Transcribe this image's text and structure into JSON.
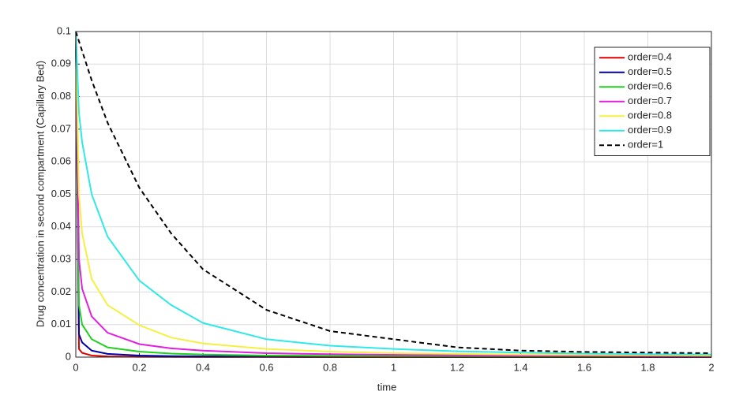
{
  "chart_data": {
    "type": "line",
    "xlabel": "time",
    "ylabel": "Drug concentration in second compartment (Capillary Bed)",
    "x": [
      0,
      0.01,
      0.02,
      0.05,
      0.1,
      0.2,
      0.3,
      0.4,
      0.6,
      0.8,
      1,
      1.2,
      1.4,
      1.6,
      1.8,
      2
    ],
    "series": [
      {
        "name": "order=0.4",
        "color": "#e00000",
        "linestyle": "solid",
        "values": [
          0.1,
          0.0025,
          0.0013,
          0.0005,
          0.0002,
          0.0001,
          5e-05,
          3e-05,
          2e-05,
          1e-05,
          1e-05,
          1e-05,
          0,
          0,
          0,
          0
        ]
      },
      {
        "name": "order=0.5",
        "color": "#0000a8",
        "linestyle": "solid",
        "values": [
          0.1,
          0.007,
          0.0045,
          0.002,
          0.001,
          0.0005,
          0.0003,
          0.00025,
          0.0002,
          0.00015,
          0.00012,
          0.0001,
          0.0001,
          0.0001,
          0.0001,
          0.0001
        ]
      },
      {
        "name": "order=0.6",
        "color": "#20d020",
        "linestyle": "solid",
        "values": [
          0.1,
          0.016,
          0.01,
          0.0055,
          0.003,
          0.0017,
          0.0011,
          0.0008,
          0.0005,
          0.0004,
          0.0003,
          0.00025,
          0.0002,
          0.0002,
          0.0002,
          0.0002
        ]
      },
      {
        "name": "order=0.7",
        "color": "#e020e0",
        "linestyle": "solid",
        "values": [
          0.1,
          0.03,
          0.021,
          0.0125,
          0.0075,
          0.004,
          0.0027,
          0.002,
          0.0012,
          0.0009,
          0.0007,
          0.0006,
          0.0005,
          0.0005,
          0.0004,
          0.0004
        ]
      },
      {
        "name": "order=0.8",
        "color": "#f5f040",
        "linestyle": "solid",
        "values": [
          0.1,
          0.05,
          0.038,
          0.024,
          0.016,
          0.0098,
          0.006,
          0.0042,
          0.0025,
          0.0017,
          0.0012,
          0.001,
          0.0008,
          0.0007,
          0.0006,
          0.0005
        ]
      },
      {
        "name": "order=0.9",
        "color": "#30e8e8",
        "linestyle": "solid",
        "values": [
          0.1,
          0.075,
          0.066,
          0.05,
          0.037,
          0.0235,
          0.016,
          0.0105,
          0.0055,
          0.0035,
          0.0025,
          0.0018,
          0.0014,
          0.0011,
          0.0009,
          0.0008
        ]
      },
      {
        "name": "order=1",
        "color": "#000000",
        "linestyle": "dashed",
        "values": [
          0.1,
          0.097,
          0.094,
          0.085,
          0.072,
          0.052,
          0.038,
          0.027,
          0.0145,
          0.008,
          0.0055,
          0.003,
          0.002,
          0.0016,
          0.0014,
          0.0012
        ]
      }
    ],
    "xlim": [
      0,
      2
    ],
    "xticks": [
      0,
      0.2,
      0.4,
      0.6,
      0.8,
      1,
      1.2,
      1.4,
      1.6,
      1.8,
      2
    ],
    "ylim": [
      0,
      0.1
    ],
    "yticks": [
      0,
      0.01,
      0.02,
      0.03,
      0.04,
      0.05,
      0.06,
      0.07,
      0.08,
      0.09,
      0.1
    ],
    "grid": true,
    "legend": "northeast"
  }
}
